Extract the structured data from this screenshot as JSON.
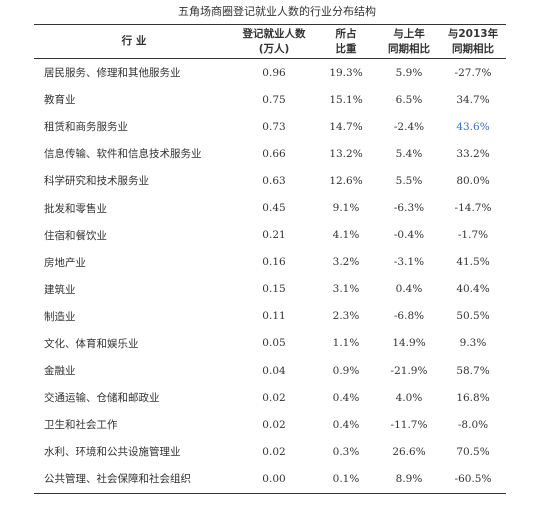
{
  "title": "五角场商圈登记就业人数的行业分布结构",
  "table": {
    "header": [
      [
        "行 业"
      ],
      [
        "登记就业人数",
        "(万人)"
      ],
      [
        "所占",
        "比重"
      ],
      [
        "与上年",
        "同期相比"
      ],
      [
        "与2013年",
        "同期相比"
      ]
    ],
    "rows": [
      [
        "居民服务、修理和其他服务业",
        "0.96",
        "19.3%",
        "5.9%",
        "-27.7%"
      ],
      [
        "教育业",
        "0.75",
        "15.1%",
        "6.5%",
        "34.7%"
      ],
      [
        "租赁和商务服务业",
        "0.73",
        "14.7%",
        "-2.4%",
        "43.6%"
      ],
      [
        "信息传输、软件和信息技术服务业",
        "0.66",
        "13.2%",
        "5.4%",
        "33.2%"
      ],
      [
        "科学研究和技术服务业",
        "0.63",
        "12.6%",
        "5.5%",
        "80.0%"
      ],
      [
        "批发和零售业",
        "0.45",
        "9.1%",
        "-6.3%",
        "-14.7%"
      ],
      [
        "住宿和餐饮业",
        "0.21",
        "4.1%",
        "-0.4%",
        "-1.7%"
      ],
      [
        "房地产业",
        "0.16",
        "3.2%",
        "-3.1%",
        "41.5%"
      ],
      [
        "建筑业",
        "0.15",
        "3.1%",
        "0.4%",
        "40.4%"
      ],
      [
        "制造业",
        "0.11",
        "2.3%",
        "-6.8%",
        "50.5%"
      ],
      [
        "文化、体育和娱乐业",
        "0.05",
        "1.1%",
        "14.9%",
        "9.3%"
      ],
      [
        "金融业",
        "0.04",
        "0.9%",
        "-21.9%",
        "58.7%"
      ],
      [
        "交通运输、仓储和邮政业",
        "0.02",
        "0.4%",
        "4.0%",
        "16.8%"
      ],
      [
        "卫生和社会工作",
        "0.02",
        "0.4%",
        "-11.7%",
        "-8.0%"
      ],
      [
        "水利、环境和公共设施管理业",
        "0.02",
        "0.3%",
        "26.6%",
        "70.5%"
      ],
      [
        "公共管理、社会保障和社会组织",
        "0.00",
        "0.1%",
        "8.9%",
        "-60.5%"
      ]
    ]
  }
}
